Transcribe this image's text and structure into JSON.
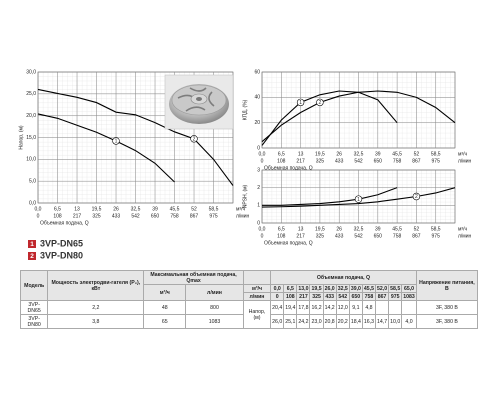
{
  "chart_data": [
    {
      "type": "line",
      "y_label": "Напор, (м)",
      "x_label": "Объемная подача, Q",
      "x_units": [
        "м³/ч",
        "л/мин"
      ],
      "xlim": [
        0,
        65
      ],
      "ylim": [
        0,
        30
      ],
      "grid": true,
      "xticks": [
        {
          "value": 0,
          "label": "0,0"
        },
        {
          "value": 6.5,
          "label": "6,5"
        },
        13,
        {
          "value": 19.5,
          "label": "19,5"
        },
        26,
        {
          "value": 32.5,
          "label": "32,5"
        },
        39,
        {
          "value": 45.5,
          "label": "45,5"
        },
        52,
        {
          "value": 58.5,
          "label": "58,5"
        }
      ],
      "xticks2": [
        0,
        {
          "value": 6.5,
          "label": "108"
        },
        {
          "value": 13,
          "label": "217"
        },
        {
          "value": 19.5,
          "label": "325"
        },
        {
          "value": 26,
          "label": "433"
        },
        {
          "value": 32.5,
          "label": "542"
        },
        {
          "value": 39,
          "label": "650"
        },
        {
          "value": 45.5,
          "label": "758"
        },
        {
          "value": 52,
          "label": "867"
        },
        {
          "value": 58.5,
          "label": "975"
        }
      ],
      "yticks": [
        {
          "value": 0,
          "label": "0,0"
        },
        {
          "value": 5,
          "label": "5,0"
        },
        {
          "value": 10,
          "label": "10,0"
        },
        {
          "value": 15,
          "label": "15,0"
        },
        {
          "value": 20,
          "label": "20,0"
        },
        {
          "value": 25,
          "label": "25,0"
        },
        {
          "value": 30,
          "label": "30,0"
        }
      ],
      "series": [
        {
          "label": "1",
          "color": "#000000",
          "x": [
            0,
            6.5,
            13,
            19.5,
            26,
            32.5,
            39,
            45.5
          ],
          "values": [
            20.4,
            19.4,
            17.8,
            16.2,
            14.2,
            12.0,
            9.1,
            4.8
          ]
        },
        {
          "label": "2",
          "color": "#000000",
          "x": [
            0,
            6.5,
            13,
            19.5,
            26,
            32.5,
            39,
            45.5,
            52,
            58.5,
            65
          ],
          "values": [
            26.0,
            25.1,
            24.2,
            23.0,
            20.8,
            20.2,
            18.4,
            16.3,
            14.7,
            10.0,
            4.0
          ]
        }
      ]
    },
    {
      "type": "line",
      "y_label": "КПД, (%)",
      "x_label": "Объемная подача, Q",
      "x_units": [
        "м³/ч",
        "л/мин"
      ],
      "xlim": [
        0,
        65
      ],
      "ylim": [
        0,
        60
      ],
      "grid": true,
      "xticks": [
        {
          "value": 0,
          "label": "0,0"
        },
        {
          "value": 6.5,
          "label": "6,5"
        },
        13,
        {
          "value": 19.5,
          "label": "19,5"
        },
        26,
        {
          "value": 32.5,
          "label": "32,5"
        },
        39,
        {
          "value": 45.5,
          "label": "45,5"
        },
        52,
        {
          "value": 58.5,
          "label": "58,5"
        }
      ],
      "xticks2": [
        0,
        {
          "value": 6.5,
          "label": "108"
        },
        {
          "value": 13,
          "label": "217"
        },
        {
          "value": 19.5,
          "label": "325"
        },
        {
          "value": 26,
          "label": "433"
        },
        {
          "value": 32.5,
          "label": "542"
        },
        {
          "value": 39,
          "label": "650"
        },
        {
          "value": 45.5,
          "label": "758"
        },
        {
          "value": 52,
          "label": "867"
        },
        {
          "value": 58.5,
          "label": "975"
        }
      ],
      "yticks": [
        0,
        20,
        40,
        60
      ],
      "series": [
        {
          "label": "1",
          "color": "#000000",
          "x": [
            0,
            6.5,
            13,
            19.5,
            26,
            32.5,
            39,
            45.5
          ],
          "values": [
            2,
            22,
            36,
            42,
            45,
            44,
            38,
            20
          ]
        },
        {
          "label": "2",
          "color": "#000000",
          "x": [
            0,
            6.5,
            13,
            19.5,
            26,
            32.5,
            39,
            45.5,
            52,
            58.5,
            65
          ],
          "values": [
            5,
            18,
            28,
            36,
            41,
            44,
            45,
            44,
            40,
            32,
            20
          ]
        }
      ]
    },
    {
      "type": "line",
      "y_label": "NPSH, (м)",
      "x_label": "Объемная подача, Q",
      "x_units": [
        "м³/ч",
        "л/мин"
      ],
      "xlim": [
        0,
        65
      ],
      "ylim": [
        0,
        3
      ],
      "grid": true,
      "xticks": [
        {
          "value": 0,
          "label": "0,0"
        },
        {
          "value": 6.5,
          "label": "6,5"
        },
        13,
        {
          "value": 19.5,
          "label": "19,5"
        },
        26,
        {
          "value": 32.5,
          "label": "32,5"
        },
        39,
        {
          "value": 45.5,
          "label": "45,5"
        },
        52,
        {
          "value": 58.5,
          "label": "58,5"
        }
      ],
      "xticks2": [
        0,
        {
          "value": 6.5,
          "label": "108"
        },
        {
          "value": 13,
          "label": "217"
        },
        {
          "value": 19.5,
          "label": "325"
        },
        {
          "value": 26,
          "label": "433"
        },
        {
          "value": 32.5,
          "label": "542"
        },
        {
          "value": 39,
          "label": "650"
        },
        {
          "value": 45.5,
          "label": "758"
        },
        {
          "value": 52,
          "label": "867"
        },
        {
          "value": 58.5,
          "label": "975"
        }
      ],
      "yticks": [
        0,
        1,
        2,
        3
      ],
      "series": [
        {
          "label": "1",
          "color": "#000000",
          "x": [
            0,
            6.5,
            13,
            19.5,
            26,
            32.5,
            39,
            45.5
          ],
          "values": [
            1.0,
            1.0,
            1.05,
            1.1,
            1.2,
            1.35,
            1.6,
            2.0
          ]
        },
        {
          "label": "2",
          "color": "#000000",
          "x": [
            0,
            6.5,
            13,
            19.5,
            26,
            32.5,
            39,
            45.5,
            52,
            58.5,
            65
          ],
          "values": [
            0.9,
            0.92,
            0.95,
            1.0,
            1.05,
            1.1,
            1.2,
            1.35,
            1.5,
            1.7,
            2.0
          ]
        }
      ]
    }
  ],
  "legend": [
    {
      "label": "1",
      "name": "3VP-DN65",
      "color": "#c0272d"
    },
    {
      "label": "2",
      "name": "3VP-DN80",
      "color": "#c0272d"
    }
  ],
  "table": {
    "headers": {
      "model": "Модель",
      "power": "Мощность электродви-гателя (P₂), кВт",
      "qmax": "Максимальная объемная подача, Qmax",
      "qmax_units": [
        "м³/ч",
        "л/мин"
      ],
      "flow": "Объемная подача, Q",
      "units": [
        "м³/ч",
        "л/мин"
      ],
      "flow_m3h": [
        "0,0",
        "6,5",
        "13,0",
        "19,5",
        "26,0",
        "32,5",
        "39,0",
        "45,5",
        "52,0",
        "58,5",
        "65,0"
      ],
      "flow_lpm": [
        "0",
        "108",
        "217",
        "325",
        "433",
        "542",
        "650",
        "758",
        "867",
        "975",
        "1083"
      ],
      "head": "Напор, (м)",
      "voltage": "Напряжение питания, В"
    },
    "rows": [
      {
        "model": "3VP-DN65",
        "power": "2,2",
        "qmax_m3h": "48",
        "qmax_lpm": "800",
        "head": [
          "20,4",
          "19,4",
          "17,8",
          "16,2",
          "14,2",
          "12,0",
          "9,1",
          "4,8"
        ],
        "voltage": "3F, 380 В"
      },
      {
        "model": "3VP-DN80",
        "power": "3,8",
        "qmax_m3h": "65",
        "qmax_lpm": "1083",
        "head": [
          "26,0",
          "25,1",
          "24,2",
          "23,0",
          "20,8",
          "20,2",
          "18,4",
          "16,3",
          "14,7",
          "10,0",
          "4,0"
        ],
        "voltage": "3F, 380 В"
      }
    ]
  }
}
